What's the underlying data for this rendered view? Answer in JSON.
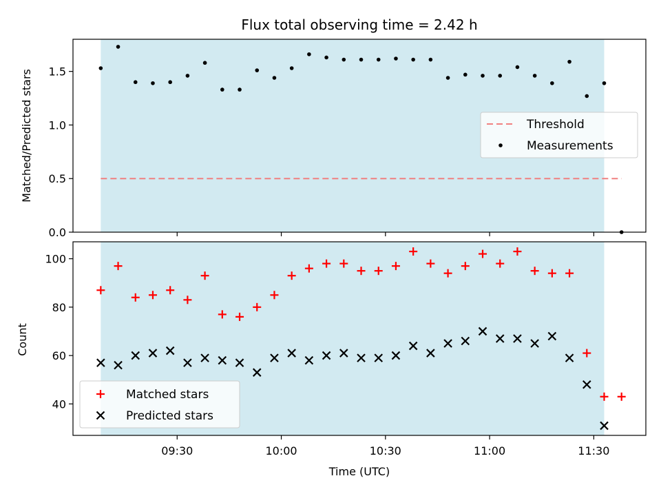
{
  "chart_data": {
    "type": "scatter",
    "title": "Flux total observing time = 2.42 h",
    "xlabel": "Time (UTC)",
    "shaded_span": [
      "09:08",
      "11:33"
    ],
    "shade_color": "#add8e6",
    "xlim": [
      "09:00",
      "11:45"
    ],
    "x_ticks": [
      "09:30",
      "10:00",
      "10:30",
      "11:00",
      "11:30"
    ],
    "top": {
      "ylabel": "Matched/Predicted stars",
      "ylim": [
        0.0,
        1.8
      ],
      "y_ticks": [
        "0.0",
        "0.5",
        "1.0",
        "1.5"
      ],
      "threshold": {
        "name": "Threshold",
        "value": 0.5,
        "color": "#f08080",
        "x_range": [
          "09:08",
          "11:38"
        ]
      },
      "legend": [
        "Threshold",
        "Measurements"
      ],
      "series": [
        {
          "name": "Measurements",
          "color": "#000000",
          "x": [
            "09:08",
            "09:13",
            "09:18",
            "09:23",
            "09:28",
            "09:33",
            "09:38",
            "09:43",
            "09:48",
            "09:53",
            "09:58",
            "10:03",
            "10:08",
            "10:13",
            "10:18",
            "10:23",
            "10:28",
            "10:33",
            "10:38",
            "10:43",
            "10:48",
            "10:53",
            "10:58",
            "11:03",
            "11:08",
            "11:13",
            "11:18",
            "11:23",
            "11:28",
            "11:33",
            "11:38"
          ],
          "y": [
            1.53,
            1.73,
            1.4,
            1.39,
            1.4,
            1.46,
            1.58,
            1.33,
            1.33,
            1.51,
            1.44,
            1.53,
            1.66,
            1.63,
            1.61,
            1.61,
            1.61,
            1.62,
            1.61,
            1.61,
            1.44,
            1.47,
            1.46,
            1.46,
            1.54,
            1.46,
            1.39,
            1.59,
            1.27,
            1.39,
            0.0
          ]
        }
      ]
    },
    "bottom": {
      "ylabel": "Count",
      "ylim": [
        27,
        107
      ],
      "y_ticks": [
        "40",
        "60",
        "80",
        "100"
      ],
      "legend": [
        "Matched stars",
        "Predicted stars"
      ],
      "series": [
        {
          "name": "Matched stars",
          "color": "#ff0000",
          "marker": "+",
          "x": [
            "09:08",
            "09:13",
            "09:18",
            "09:23",
            "09:28",
            "09:33",
            "09:38",
            "09:43",
            "09:48",
            "09:53",
            "09:58",
            "10:03",
            "10:08",
            "10:13",
            "10:18",
            "10:23",
            "10:28",
            "10:33",
            "10:38",
            "10:43",
            "10:48",
            "10:53",
            "10:58",
            "11:03",
            "11:08",
            "11:13",
            "11:18",
            "11:23",
            "11:28",
            "11:33",
            "11:38"
          ],
          "y": [
            87,
            97,
            84,
            85,
            87,
            83,
            93,
            77,
            76,
            80,
            85,
            93,
            96,
            98,
            98,
            95,
            95,
            97,
            103,
            98,
            94,
            97,
            102,
            98,
            103,
            95,
            94,
            94,
            61,
            43,
            43
          ]
        },
        {
          "name": "Predicted stars",
          "color": "#000000",
          "marker": "x",
          "x": [
            "09:08",
            "09:13",
            "09:18",
            "09:23",
            "09:28",
            "09:33",
            "09:38",
            "09:43",
            "09:48",
            "09:53",
            "09:58",
            "10:03",
            "10:08",
            "10:13",
            "10:18",
            "10:23",
            "10:28",
            "10:33",
            "10:38",
            "10:43",
            "10:48",
            "10:53",
            "10:58",
            "11:03",
            "11:08",
            "11:13",
            "11:18",
            "11:23",
            "11:28",
            "11:33"
          ],
          "y": [
            57,
            56,
            60,
            61,
            62,
            57,
            59,
            58,
            57,
            53,
            59,
            61,
            58,
            60,
            61,
            59,
            59,
            60,
            64,
            61,
            65,
            66,
            70,
            67,
            67,
            65,
            68,
            59,
            48,
            31
          ]
        }
      ]
    }
  }
}
